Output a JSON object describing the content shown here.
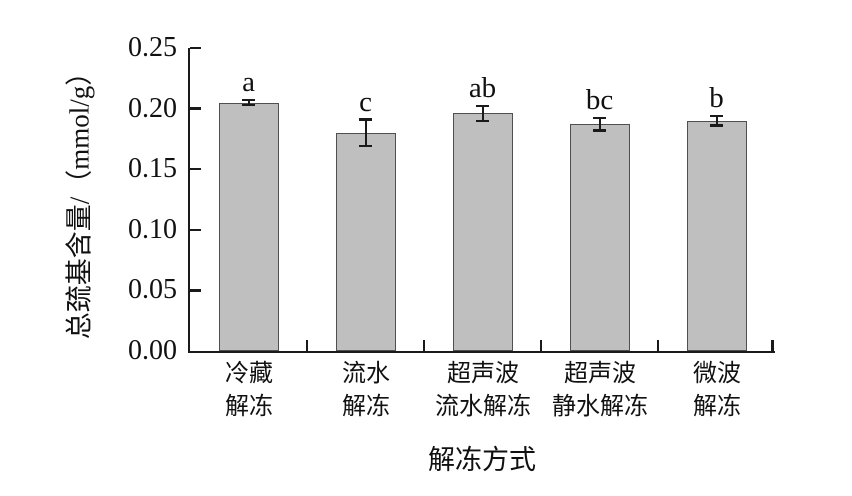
{
  "chart_data": {
    "type": "bar",
    "title": "",
    "xlabel": "解冻方式",
    "ylabel": "总巯基含量/（mmol/g）",
    "categories": [
      "冷藏解冻",
      "流水解冻",
      "超声波流水解冻",
      "超声波静水解冻",
      "微波解冻"
    ],
    "category_labels_two_line": [
      [
        "冷藏",
        "解冻"
      ],
      [
        "流水",
        "解冻"
      ],
      [
        "超声波",
        "流水解冻"
      ],
      [
        "超声波",
        "静水解冻"
      ],
      [
        "微波",
        "解冻"
      ]
    ],
    "values": [
      0.205,
      0.18,
      0.196,
      0.187,
      0.19
    ],
    "errors": [
      0.002,
      0.011,
      0.006,
      0.005,
      0.004
    ],
    "sig_letters": [
      "a",
      "c",
      "ab",
      "bc",
      "b"
    ],
    "ylim": [
      0,
      0.25
    ],
    "ytick_step": 0.05,
    "ytick_labels": [
      "0.00",
      "0.05",
      "0.10",
      "0.15",
      "0.20",
      "0.25"
    ],
    "grid": false,
    "legend_position": "none",
    "colors": {
      "bar_fill": "#bfbfbf",
      "bar_border": "#4f4f4f",
      "axis": "#1a1a1a",
      "error_bar": "#1a1a1a",
      "text": "#111111",
      "background": "#ffffff"
    }
  }
}
